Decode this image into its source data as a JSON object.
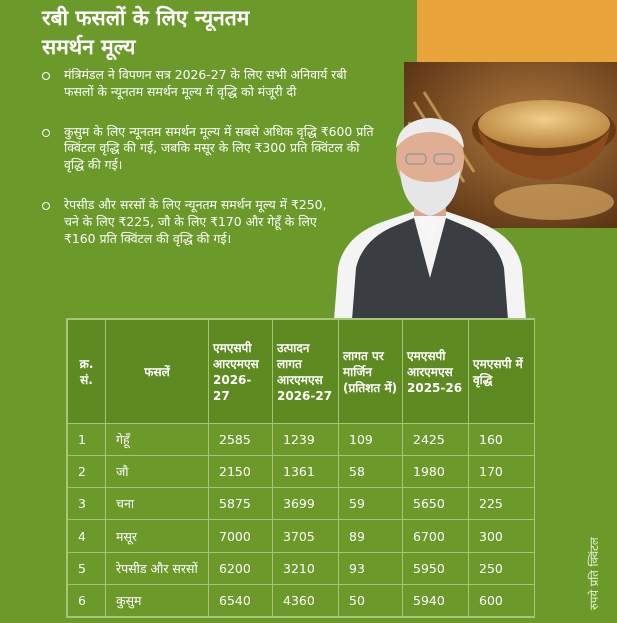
{
  "title": {
    "line1": "रबी फसलों के लिए न्यूनतम",
    "line2": "समर्थन मूल्य"
  },
  "bullets": [
    {
      "text": "मंत्रिमंडल ने विपणन सत्र 2026-27 के लिए सभी अनिवार्य रबी फसलों के न्यूनतम समर्थन मूल्य में वृद्धि को मंजूरी दी"
    },
    {
      "text": "कुसुम के लिए न्यूनतम समर्थन मूल्य में सबसे अधिक वृद्धि ₹600 प्रति क्विंटल वृद्धि की गई, जबकि मसूर के लिए ₹300 प्रति क्विंटल की वृद्धि की गई।"
    },
    {
      "text": "रेपसीड और सरसों के लिए न्यूनतम समर्थन मूल्य में ₹250, चने के लिए ₹225, जौ के लिए ₹170 और गेहूँ के लिए ₹160 प्रति क्विंटल की वृद्धि की गई।"
    }
  ],
  "table": {
    "headers": {
      "sn": "क्र. सं.",
      "crop": "फसलें",
      "msp_2026_27": "एमएसपी आरएमएस 2026-27",
      "cost": "उत्पादन लागत आरएमएस 2026-27",
      "margin": "लागत पर मार्जिन (प्रतिशत में)",
      "msp_2025_26": "एमएसपी आरएमएस 2025-26",
      "increase": "एमएसपी में वृद्धि"
    },
    "rows": [
      {
        "sn": "1",
        "crop": "गेहूँ",
        "msp_2026_27": "2585",
        "cost": "1239",
        "margin": "109",
        "msp_2025_26": "2425",
        "increase": "160"
      },
      {
        "sn": "2",
        "crop": "जौ",
        "msp_2026_27": "2150",
        "cost": "1361",
        "margin": "58",
        "msp_2025_26": "1980",
        "increase": "170"
      },
      {
        "sn": "3",
        "crop": "चना",
        "msp_2026_27": "5875",
        "cost": "3699",
        "margin": "59",
        "msp_2025_26": "5650",
        "increase": "225"
      },
      {
        "sn": "4",
        "crop": "मसूर",
        "msp_2026_27": "7000",
        "cost": "3705",
        "margin": "89",
        "msp_2025_26": "6700",
        "increase": "300"
      },
      {
        "sn": "5",
        "crop": "रेपसीड और सरसों",
        "msp_2026_27": "6200",
        "cost": "3210",
        "margin": "93",
        "msp_2025_26": "5950",
        "increase": "250"
      },
      {
        "sn": "6",
        "crop": "कुसुम",
        "msp_2026_27": "6540",
        "cost": "4360",
        "margin": "50",
        "msp_2025_26": "5940",
        "increase": "600"
      }
    ]
  },
  "unit_note": "रुपये प्रति क्विंटल",
  "colors": {
    "background": "#6b9a2b",
    "accent": "#e8a33a",
    "header": "#5e8a22"
  },
  "icons": [
    "bullet-circle-icon"
  ]
}
